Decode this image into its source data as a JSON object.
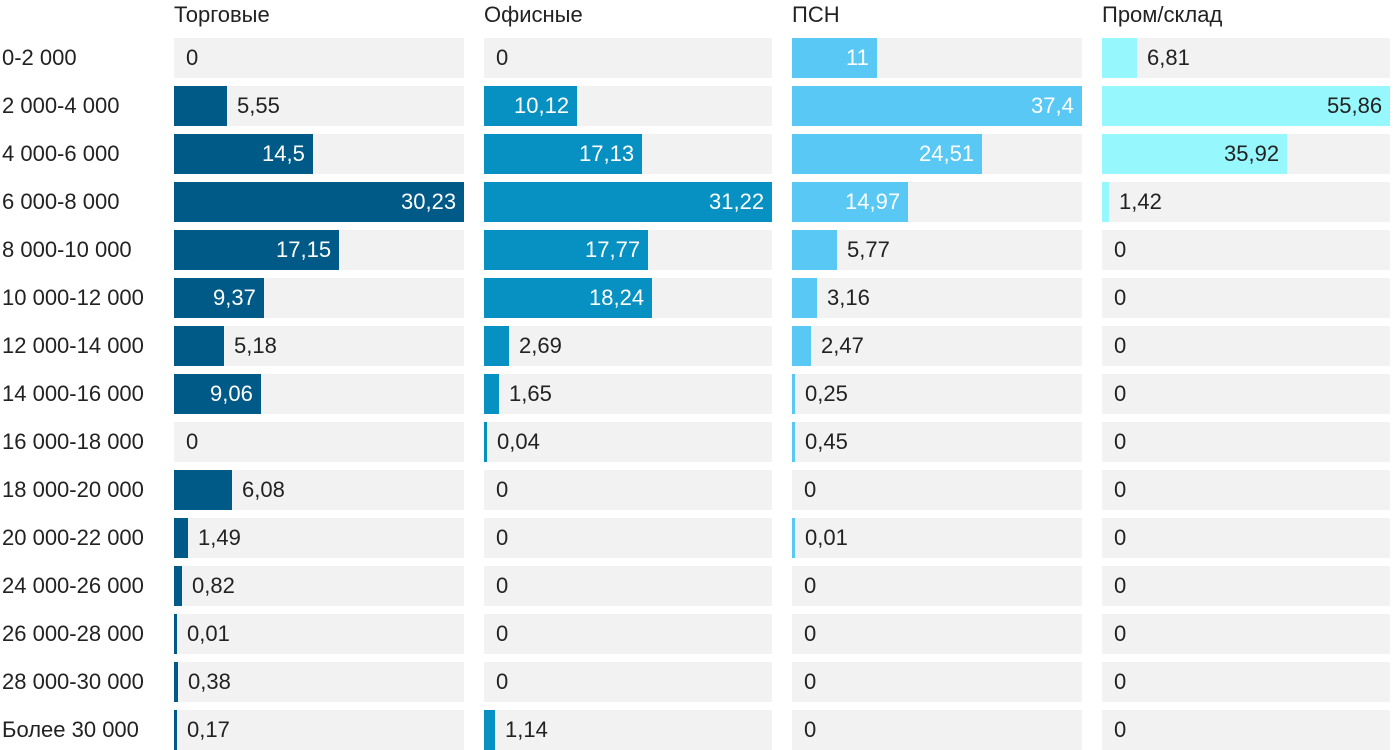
{
  "chart_data": {
    "type": "bar",
    "orientation": "horizontal",
    "layout": "small-multiples",
    "categories": [
      "0-2 000",
      "2 000-4 000",
      "4 000-6 000",
      "6 000-8 000",
      "8 000-10 000",
      "10 000-12 000",
      "12 000-14 000",
      "14 000-16 000",
      "16 000-18 000",
      "18 000-20 000",
      "20 000-22 000",
      "24 000-26 000",
      "26 000-28 000",
      "28 000-30 000",
      "Более 30 000"
    ],
    "series": [
      {
        "name": "Торговые",
        "color": "#005a87",
        "max": 30.23,
        "values": [
          0,
          5.55,
          14.5,
          30.23,
          17.15,
          9.37,
          5.18,
          9.06,
          0,
          6.08,
          1.49,
          0.82,
          0.01,
          0.38,
          0.17
        ],
        "labels": [
          "0",
          "5,55",
          "14,5",
          "30,23",
          "17,15",
          "9,37",
          "5,18",
          "9,06",
          "0",
          "6,08",
          "1,49",
          "0,82",
          "0,01",
          "0,38",
          "0,17"
        ]
      },
      {
        "name": "Офисные",
        "color": "#0791c2",
        "max": 31.22,
        "values": [
          0,
          10.12,
          17.13,
          31.22,
          17.77,
          18.24,
          2.69,
          1.65,
          0.04,
          0,
          0,
          0,
          0,
          0,
          1.14
        ],
        "labels": [
          "0",
          "10,12",
          "17,13",
          "31,22",
          "17,77",
          "18,24",
          "2,69",
          "1,65",
          "0,04",
          "0",
          "0",
          "0",
          "0",
          "0",
          "1,14"
        ]
      },
      {
        "name": "ПСН",
        "color": "#5ac8f5",
        "max": 37.4,
        "values": [
          11,
          37.4,
          24.51,
          14.97,
          5.77,
          3.16,
          2.47,
          0.25,
          0.45,
          0,
          0.01,
          0,
          0,
          0,
          0
        ],
        "labels": [
          "11",
          "37,4",
          "24,51",
          "14,97",
          "5,77",
          "3,16",
          "2,47",
          "0,25",
          "0,45",
          "0",
          "0,01",
          "0",
          "0",
          "0",
          "0"
        ]
      },
      {
        "name": "Пром/склад",
        "color": "#96f8fc",
        "max": 55.86,
        "values": [
          6.81,
          55.86,
          35.92,
          1.42,
          0,
          0,
          0,
          0,
          0,
          0,
          0,
          0,
          0,
          0,
          0
        ],
        "labels": [
          "6,81",
          "55,86",
          "35,92",
          "1,42",
          "0",
          "0",
          "0",
          "0",
          "0",
          "0",
          "0",
          "0",
          "0",
          "0",
          "0"
        ]
      }
    ],
    "colors": {
      "track": "#f2f2f2",
      "text_dark": "#222222",
      "text_light": "#ffffff"
    },
    "grid": false,
    "legend": "none"
  }
}
